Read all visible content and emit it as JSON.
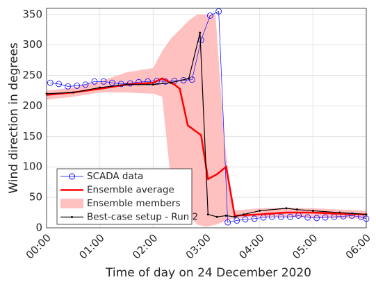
{
  "chart_data": {
    "type": "line",
    "xlabel": "Time of day on 24 December 2020",
    "ylabel": "Wind direction in degrees",
    "xlim": [
      0,
      6
    ],
    "xticks": [
      {
        "value": 0,
        "label": "00:00"
      },
      {
        "value": 1,
        "label": "01:00"
      },
      {
        "value": 2,
        "label": "02:00"
      },
      {
        "value": 3,
        "label": "03:00"
      },
      {
        "value": 4,
        "label": "04:00"
      },
      {
        "value": 5,
        "label": "05:00"
      },
      {
        "value": 6,
        "label": "06:00"
      }
    ],
    "ylim": [
      0,
      360
    ],
    "yticks": [
      0,
      50,
      100,
      150,
      200,
      250,
      300,
      350
    ],
    "grid": true,
    "legend": "lower left",
    "band": {
      "name": "Ensemble members",
      "color": "#ffc0c0",
      "x": [
        0,
        0.5,
        1,
        1.5,
        2,
        2.17,
        2.33,
        2.5,
        2.67,
        2.83,
        3.0,
        3.17,
        3.33,
        3.5,
        4,
        4.5,
        5,
        5.5,
        6
      ],
      "upper": [
        225,
        230,
        240,
        255,
        262,
        290,
        310,
        325,
        340,
        350,
        350,
        350,
        150,
        28,
        32,
        33,
        32,
        30,
        28
      ],
      "lower": [
        210,
        215,
        222,
        222,
        220,
        215,
        80,
        40,
        20,
        5,
        2,
        5,
        10,
        15,
        18,
        18,
        17,
        16,
        15
      ]
    },
    "series": [
      {
        "name": "SCADA data",
        "color": "#0000ff",
        "marker": "circle",
        "linewidth": 0.7,
        "x": [
          0.07,
          0.23,
          0.4,
          0.57,
          0.73,
          0.9,
          1.07,
          1.23,
          1.4,
          1.57,
          1.73,
          1.9,
          2.07,
          2.23,
          2.4,
          2.57,
          2.73,
          2.9,
          3.07,
          3.23,
          3.4,
          3.57,
          3.73,
          3.9,
          4.07,
          4.23,
          4.4,
          4.57,
          4.73,
          4.9,
          5.07,
          5.23,
          5.4,
          5.57,
          5.73,
          5.9,
          6.0
        ],
        "values": [
          238,
          236,
          232,
          233,
          235,
          240,
          240,
          238,
          236,
          237,
          239,
          240,
          241,
          240,
          241,
          242,
          243,
          308,
          348,
          355,
          9,
          12,
          14,
          15,
          17,
          18,
          18,
          18,
          20,
          17,
          16,
          17,
          18,
          19,
          20,
          18,
          15
        ]
      },
      {
        "name": "Ensemble average",
        "color": "#ff0000",
        "marker": "none",
        "linewidth": 2.5,
        "x": [
          0,
          0.5,
          1,
          1.5,
          2,
          2.17,
          2.4,
          2.5,
          2.65,
          2.9,
          3.03,
          3.2,
          3.37,
          3.53,
          4,
          4.5,
          5,
          5.5,
          6
        ],
        "values": [
          218,
          222,
          228,
          235,
          238,
          245,
          235,
          228,
          168,
          152,
          80,
          88,
          100,
          20,
          22,
          25,
          25,
          23,
          22
        ]
      },
      {
        "name": "Best-case setup - Run 2",
        "color": "#000000",
        "marker": "dot",
        "linewidth": 1.2,
        "x": [
          0,
          0.5,
          1,
          1.5,
          2,
          2.33,
          2.67,
          2.88,
          3.03,
          3.2,
          3.37,
          3.53,
          3.7,
          4,
          4.5,
          4.7,
          5,
          5.5,
          6
        ],
        "values": [
          220,
          222,
          230,
          235,
          235,
          238,
          245,
          320,
          22,
          18,
          20,
          18,
          22,
          28,
          32,
          30,
          28,
          25,
          22
        ]
      }
    ]
  }
}
